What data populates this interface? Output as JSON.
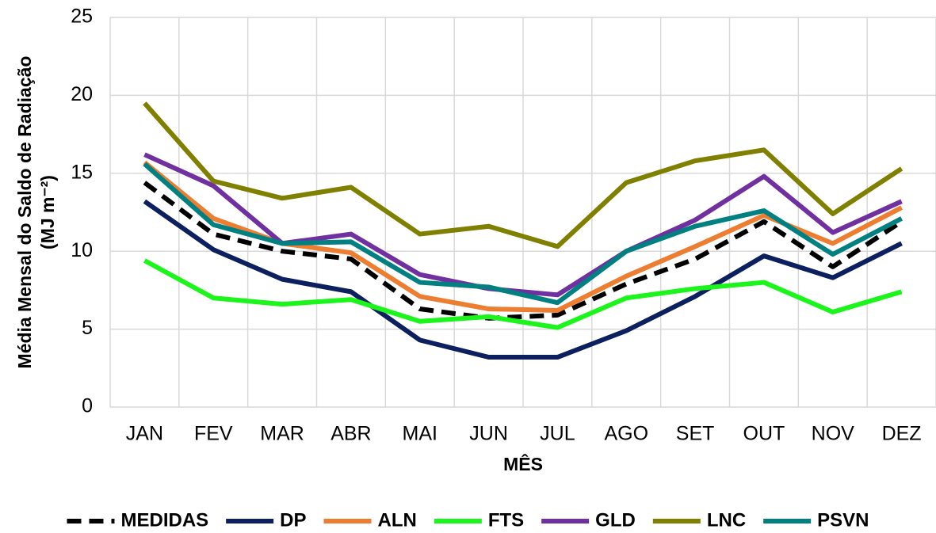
{
  "chart_data": {
    "type": "line",
    "x_label": "MÊS",
    "y_label": "Média Mensal do Saldo de Radiação",
    "y_label_unit": "(MJ m⁻²)",
    "categories": [
      "JAN",
      "FEV",
      "MAR",
      "ABR",
      "MAI",
      "JUN",
      "JUL",
      "AGO",
      "SET",
      "OUT",
      "NOV",
      "DEZ"
    ],
    "series": [
      {
        "name": "MEDIDAS",
        "color": "#000000",
        "style": "dashed",
        "values": [
          14.4,
          11.1,
          10.0,
          9.5,
          6.3,
          5.7,
          5.9,
          7.9,
          9.5,
          11.9,
          9.0,
          11.9
        ]
      },
      {
        "name": "DP",
        "color": "#0c1f5e",
        "style": "solid",
        "values": [
          13.2,
          10.1,
          8.2,
          7.4,
          4.3,
          3.2,
          3.2,
          4.9,
          7.1,
          9.7,
          8.3,
          10.5
        ]
      },
      {
        "name": "ALN",
        "color": "#ed7d31",
        "style": "solid",
        "values": [
          15.7,
          12.1,
          10.5,
          9.9,
          7.1,
          6.3,
          6.2,
          8.4,
          10.3,
          12.3,
          10.5,
          12.8
        ]
      },
      {
        "name": "FTS",
        "color": "#1cf51c",
        "style": "solid",
        "values": [
          9.4,
          7.0,
          6.6,
          6.9,
          5.5,
          5.8,
          5.1,
          7.0,
          7.6,
          8.0,
          6.1,
          7.4
        ]
      },
      {
        "name": "GLD",
        "color": "#7030a0",
        "style": "solid",
        "values": [
          16.2,
          14.2,
          10.5,
          11.1,
          8.5,
          7.6,
          7.2,
          10.0,
          12.0,
          14.8,
          11.2,
          13.2
        ]
      },
      {
        "name": "LNC",
        "color": "#808000",
        "style": "solid",
        "values": [
          19.5,
          14.5,
          13.4,
          14.1,
          11.1,
          11.6,
          10.3,
          14.4,
          15.8,
          16.5,
          12.4,
          15.3
        ]
      },
      {
        "name": "PSVN",
        "color": "#008080",
        "style": "solid",
        "values": [
          15.6,
          11.7,
          10.5,
          10.6,
          8.0,
          7.7,
          6.7,
          10.0,
          11.6,
          12.6,
          9.8,
          12.1
        ]
      }
    ],
    "ylim": [
      0,
      25
    ],
    "yticks": [
      0,
      5,
      10,
      15,
      20,
      25
    ],
    "grid": true,
    "legend": "bottom"
  }
}
